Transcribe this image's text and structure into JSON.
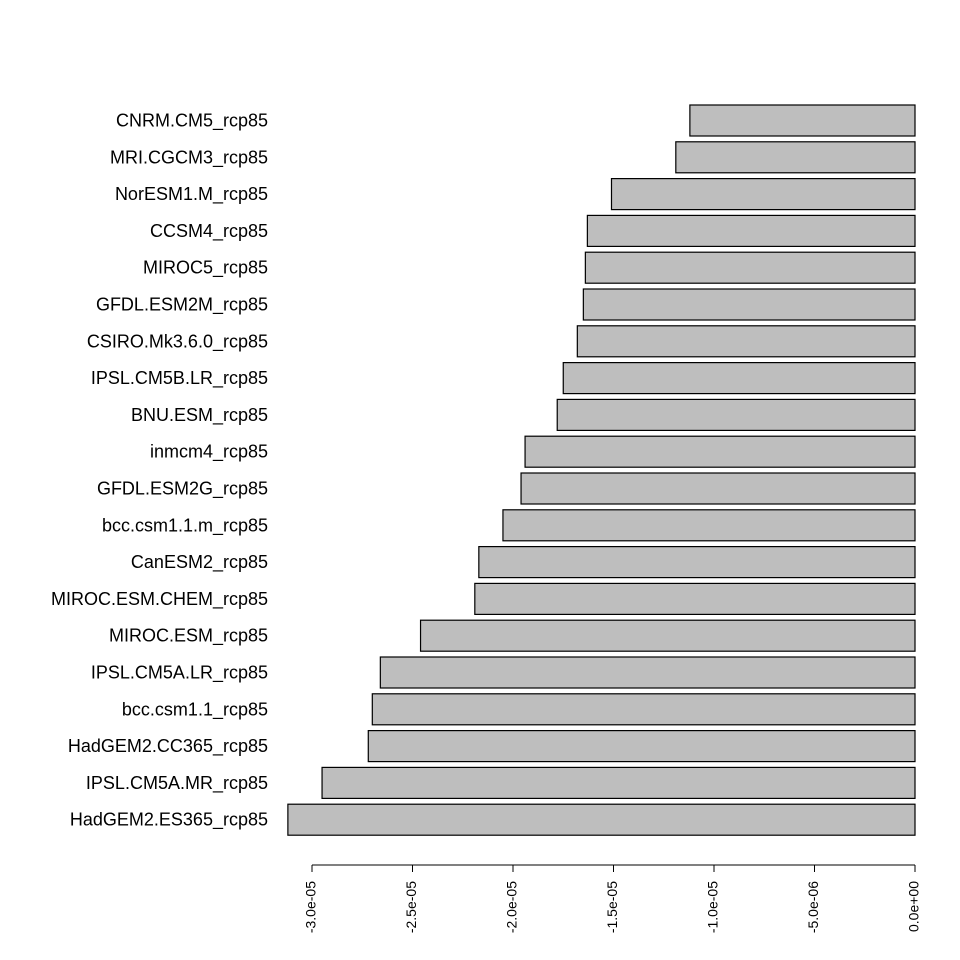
{
  "chart_data": {
    "type": "bar",
    "orientation": "horizontal",
    "categories": [
      "HadGEM2.ES365_rcp85",
      "IPSL.CM5A.MR_rcp85",
      "HadGEM2.CC365_rcp85",
      "bcc.csm1.1_rcp85",
      "IPSL.CM5A.LR_rcp85",
      "MIROC.ESM_rcp85",
      "MIROC.ESM.CHEM_rcp85",
      "CanESM2_rcp85",
      "bcc.csm1.1.m_rcp85",
      "GFDL.ESM2G_rcp85",
      "inmcm4_rcp85",
      "BNU.ESM_rcp85",
      "IPSL.CM5B.LR_rcp85",
      "CSIRO.Mk3.6.0_rcp85",
      "GFDL.ESM2M_rcp85",
      "MIROC5_rcp85",
      "CCSM4_rcp85",
      "NorESM1.M_rcp85",
      "MRI.CGCM3_rcp85",
      "CNRM.CM5_rcp85"
    ],
    "values": [
      -3.12e-05,
      -2.95e-05,
      -2.72e-05,
      -2.7e-05,
      -2.66e-05,
      -2.46e-05,
      -2.19e-05,
      -2.17e-05,
      -2.05e-05,
      -1.96e-05,
      -1.94e-05,
      -1.78e-05,
      -1.75e-05,
      -1.68e-05,
      -1.65e-05,
      -1.64e-05,
      -1.63e-05,
      -1.51e-05,
      -1.19e-05,
      -1.12e-05
    ],
    "xlim": [
      -3e-05,
      0
    ],
    "ticks": [
      -3e-05,
      -2.5e-05,
      -2e-05,
      -1.5e-05,
      -1e-05,
      -5e-06,
      0
    ],
    "tick_labels": [
      "-3.0e-05",
      "-2.5e-05",
      "-2.0e-05",
      "-1.5e-05",
      "-1.0e-05",
      "-5.0e-06",
      "0.0e+00"
    ],
    "title": "",
    "xlabel": "",
    "ylabel": "",
    "grid": false,
    "bar_color": "#bebebe",
    "bar_border_color": "#000000"
  }
}
